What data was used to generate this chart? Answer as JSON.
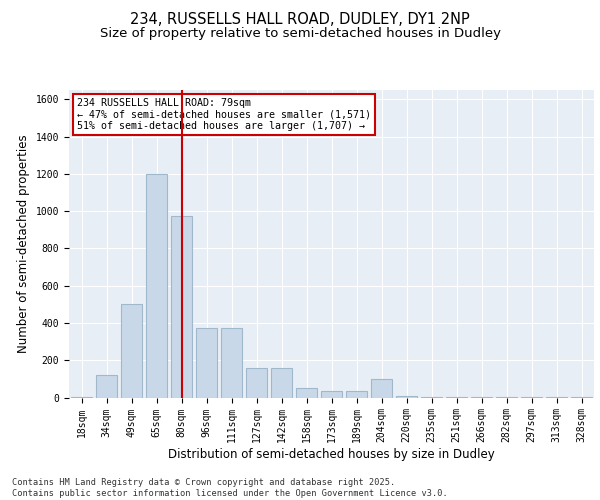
{
  "title1": "234, RUSSELLS HALL ROAD, DUDLEY, DY1 2NP",
  "title2": "Size of property relative to semi-detached houses in Dudley",
  "xlabel": "Distribution of semi-detached houses by size in Dudley",
  "ylabel": "Number of semi-detached properties",
  "categories": [
    "18sqm",
    "34sqm",
    "49sqm",
    "65sqm",
    "80sqm",
    "96sqm",
    "111sqm",
    "127sqm",
    "142sqm",
    "158sqm",
    "173sqm",
    "189sqm",
    "204sqm",
    "220sqm",
    "235sqm",
    "251sqm",
    "266sqm",
    "282sqm",
    "297sqm",
    "313sqm",
    "328sqm"
  ],
  "values": [
    5,
    120,
    500,
    1200,
    975,
    375,
    375,
    160,
    160,
    50,
    35,
    35,
    100,
    10,
    5,
    5,
    5,
    5,
    5,
    5,
    3
  ],
  "bar_color": "#c8d8e8",
  "bar_edgecolor": "#a0b8cc",
  "property_line_index": 4,
  "property_line_color": "#cc0000",
  "annotation_text": "234 RUSSELLS HALL ROAD: 79sqm\n← 47% of semi-detached houses are smaller (1,571)\n51% of semi-detached houses are larger (1,707) →",
  "annotation_box_color": "#cc0000",
  "ylim": [
    0,
    1650
  ],
  "yticks": [
    0,
    200,
    400,
    600,
    800,
    1000,
    1200,
    1400,
    1600
  ],
  "background_color": "#e8eef5",
  "footer": "Contains HM Land Registry data © Crown copyright and database right 2025.\nContains public sector information licensed under the Open Government Licence v3.0.",
  "title_fontsize": 10.5,
  "subtitle_fontsize": 9.5,
  "tick_fontsize": 7,
  "label_fontsize": 8.5,
  "footer_fontsize": 6.2
}
